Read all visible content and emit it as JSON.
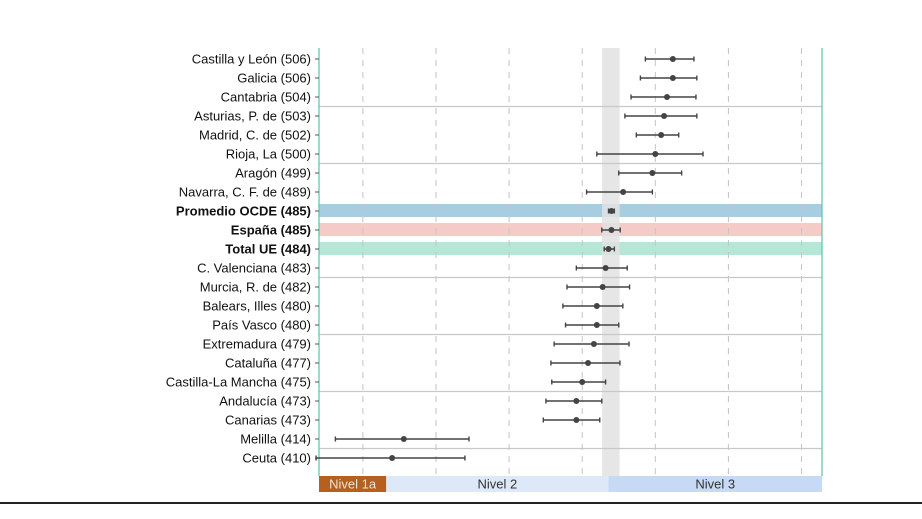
{
  "chart_data": {
    "type": "forest",
    "title": "",
    "xlabel": "",
    "ylabel": "",
    "xlim": [
      385,
      557
    ],
    "gridlines_x": [
      400,
      425,
      450,
      475,
      500,
      525,
      550
    ],
    "grid": true,
    "categories": [
      "Castilla y León (506)",
      "Galicia (506)",
      "Cantabria (504)",
      "Asturias, P. de (503)",
      "Madrid, C. de (502)",
      "Rioja, La (500)",
      "Aragón (499)",
      "Navarra, C. F. de (489)",
      "Promedio OCDE (485)",
      "España (485)",
      "Total UE (484)",
      "C. Valenciana (483)",
      "Murcia, R. de (482)",
      "Balears, Illes (480)",
      "País Vasco (480)",
      "Extremadura (479)",
      "Cataluña (477)",
      "Castilla-La Mancha (475)",
      "Andalucía (473)",
      "Canarias (473)",
      "Melilla (414)",
      "Ceuta (410)"
    ],
    "bold_categories": [
      "Promedio OCDE (485)",
      "España (485)",
      "Total UE (484)"
    ],
    "values": [
      506,
      506,
      504,
      503,
      502,
      500,
      499,
      489,
      485,
      485,
      484,
      483,
      482,
      480,
      480,
      479,
      477,
      475,
      473,
      473,
      414,
      410
    ],
    "ci_low": [
      496.6,
      494.9,
      491.7,
      489.6,
      493.5,
      480.0,
      487.5,
      476.5,
      484.0,
      481.7,
      482.5,
      473.0,
      469.8,
      468.4,
      469.3,
      465.4,
      464.3,
      464.6,
      462.6,
      461.7,
      390.6,
      384.0
    ],
    "ci_high": [
      513.2,
      514.2,
      513.9,
      514.2,
      508.0,
      516.3,
      509.0,
      499.0,
      486.0,
      488.0,
      486.0,
      490.4,
      491.2,
      488.9,
      487.5,
      491.0,
      487.9,
      483.0,
      481.7,
      481.0,
      436.3,
      434.9
    ],
    "row_highlights": [
      {
        "category": "Promedio OCDE (485)",
        "color": "#a9cde0"
      },
      {
        "category": "España (485)",
        "color": "#f5cbc7"
      },
      {
        "category": "Total UE (484)",
        "color": "#b5e7d7"
      }
    ],
    "reference_band": {
      "from": 481.8,
      "to": 487.8,
      "color": "#e2e2e2"
    },
    "level_bands": [
      {
        "label": "Nivel 1a",
        "from": 385,
        "to": 408,
        "color": "#b5601e",
        "text_color": "#f3e3d3"
      },
      {
        "label": "Nivel 2",
        "from": 408,
        "to": 484,
        "color": "#dde8f8",
        "text_color": "#333333"
      },
      {
        "label": "Nivel 3",
        "from": 484,
        "to": 557,
        "color": "#c6d9f5",
        "text_color": "#333333"
      }
    ],
    "colors": {
      "axis": "#6fc3b0",
      "point": "#444444",
      "separator": "#c8c8c8"
    }
  }
}
